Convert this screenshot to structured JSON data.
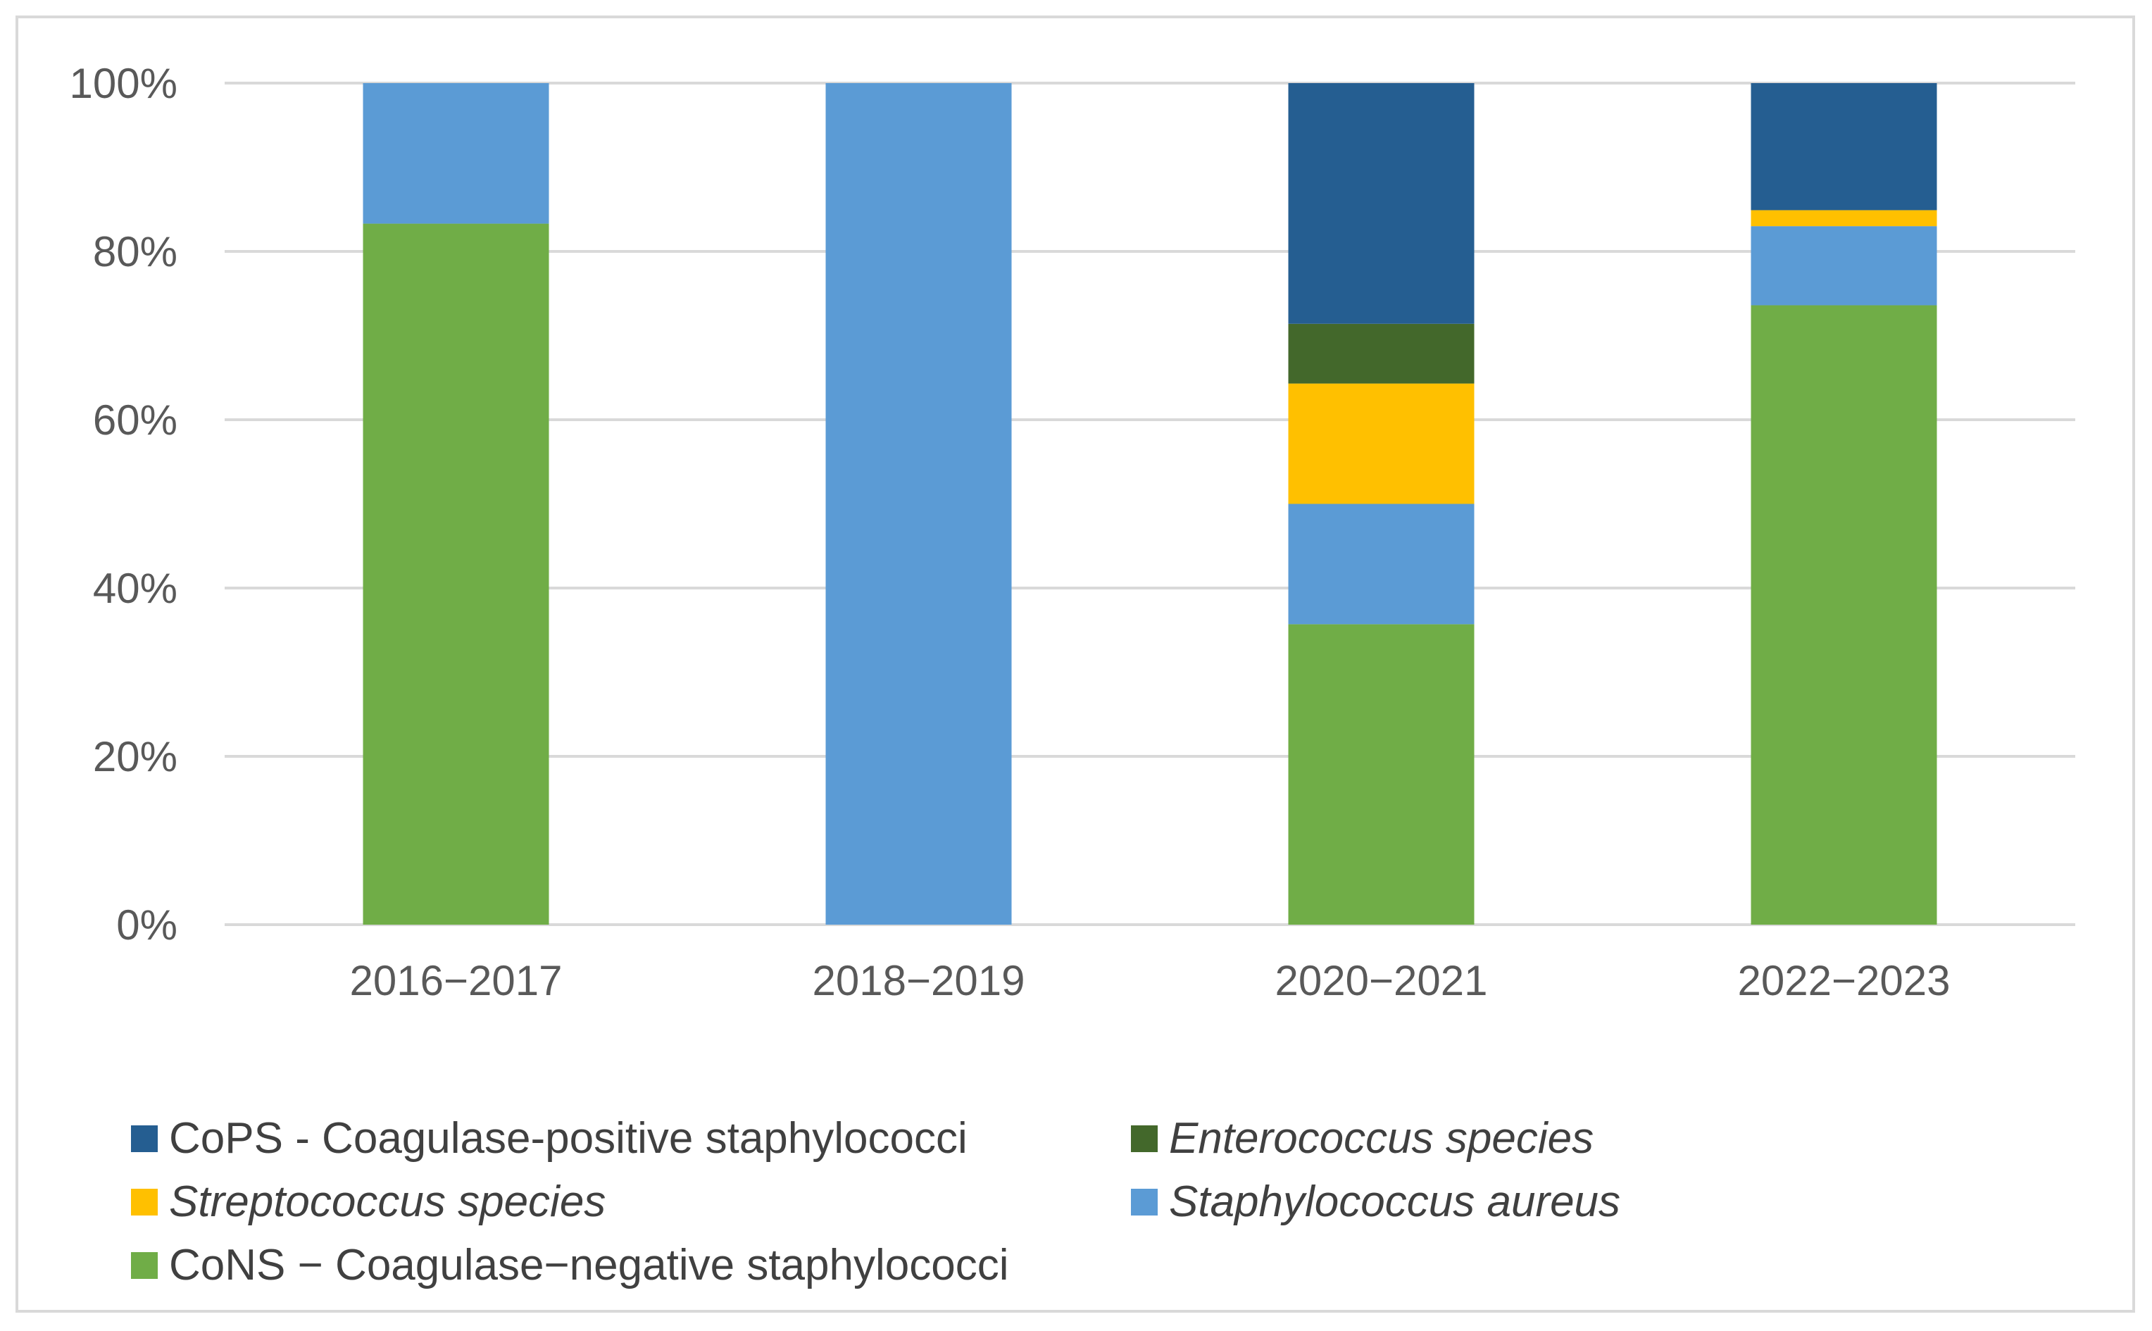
{
  "chart_data": {
    "type": "bar",
    "stacked": true,
    "categories": [
      "2016−2017",
      "2018−2019",
      "2020−2021",
      "2022−2023"
    ],
    "series": [
      {
        "name": "CoNS − Coagulase−negative staphylococci",
        "color": "#70ad47",
        "italic": false,
        "values": [
          83.3,
          0,
          35.7,
          73.6
        ]
      },
      {
        "name": "Staphylococcus aureus",
        "color": "#5b9bd5",
        "italic": true,
        "values": [
          16.7,
          100,
          14.3,
          9.4
        ]
      },
      {
        "name": "Streptococcus species",
        "color": "#ffc000",
        "italic": true,
        "values": [
          0,
          0,
          14.3,
          1.9
        ]
      },
      {
        "name": "Enterococcus species",
        "color": "#43682b",
        "italic": true,
        "values": [
          0,
          0,
          7.1,
          0
        ]
      },
      {
        "name": "CoPS - Coagulase-positive staphylococci",
        "color": "#255e91",
        "italic": false,
        "values": [
          0,
          0,
          28.6,
          15.1
        ]
      }
    ],
    "ylim": [
      0,
      100
    ],
    "yticks": [
      "0%",
      "20%",
      "40%",
      "60%",
      "80%",
      "100%"
    ],
    "ytick_values": [
      0,
      20,
      40,
      60,
      80,
      100
    ],
    "grid": true,
    "legend_position": "bottom",
    "legend_order": [
      4,
      3,
      2,
      1,
      0
    ],
    "title": "",
    "xlabel": "",
    "ylabel": ""
  }
}
